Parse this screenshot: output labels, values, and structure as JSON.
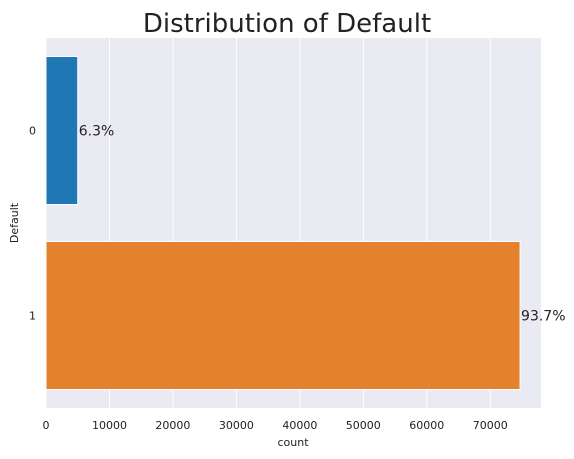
{
  "chart_data": {
    "type": "bar",
    "orientation": "horizontal",
    "title": "Distribution of Default",
    "xlabel": "count",
    "ylabel": "Default",
    "categories": [
      "0",
      "1"
    ],
    "values": [
      5000,
      74700
    ],
    "bar_labels": [
      "6.3%",
      "93.7%"
    ],
    "colors": [
      "#1f77b4",
      "#e3812c"
    ],
    "xlim": [
      0,
      78000
    ],
    "xticks": [
      0,
      10000,
      20000,
      30000,
      40000,
      50000,
      60000,
      70000
    ],
    "xtick_labels": [
      "0",
      "10000",
      "20000",
      "30000",
      "40000",
      "50000",
      "60000",
      "70000"
    ],
    "grid": true,
    "background": "#eaeaf2"
  }
}
